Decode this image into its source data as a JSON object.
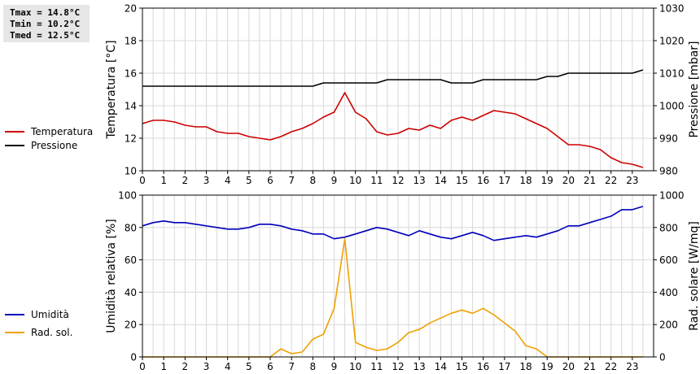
{
  "stats": {
    "tmax": "Tmax = 14.8°C",
    "tmin": "Tmin = 10.2°C",
    "tmed": "Tmed = 12.5°C"
  },
  "legend_top": [
    {
      "label": "Temperatura",
      "color": "#cc0000"
    },
    {
      "label": "Pressione",
      "color": "#000000"
    }
  ],
  "legend_bottom": [
    {
      "label": "Umidità",
      "color": "#0000bb"
    },
    {
      "label": "Rad. sol.",
      "color": "#f0a000"
    }
  ],
  "chart_data": [
    {
      "type": "line",
      "xlabel": "",
      "ylabel": "Temperatura [°C]",
      "y2label": "Pressione [mbar]",
      "xlim": [
        0,
        24
      ],
      "ylim": [
        10,
        20
      ],
      "y2lim": [
        980,
        1030
      ],
      "x_ticks": [
        "0",
        "1",
        "2",
        "3",
        "4",
        "5",
        "6",
        "7",
        "8",
        "9",
        "10",
        "11",
        "12",
        "13",
        "14",
        "15",
        "16",
        "17",
        "18",
        "19",
        "20",
        "21",
        "22",
        "23"
      ],
      "y_ticks": [
        "10",
        "12",
        "14",
        "16",
        "18",
        "20"
      ],
      "y2_ticks": [
        "980",
        "990",
        "1000",
        "1010",
        "1020",
        "1030"
      ],
      "grid": true,
      "series": [
        {
          "name": "Temperatura",
          "axis": "left",
          "color": "#cc0000",
          "x": [
            0,
            0.5,
            1,
            1.5,
            2,
            2.5,
            3,
            3.5,
            4,
            4.5,
            5,
            5.5,
            6,
            6.5,
            7,
            7.5,
            8,
            8.5,
            9,
            9.5,
            10,
            10.5,
            11,
            11.5,
            12,
            12.5,
            13,
            13.5,
            14,
            14.5,
            15,
            15.5,
            16,
            16.5,
            17,
            17.5,
            18,
            18.5,
            19,
            19.5,
            20,
            20.5,
            21,
            21.5,
            22,
            22.5,
            23,
            23.5
          ],
          "y": [
            12.9,
            13.1,
            13.1,
            13.0,
            12.8,
            12.7,
            12.7,
            12.4,
            12.3,
            12.3,
            12.1,
            12.0,
            11.9,
            12.1,
            12.4,
            12.6,
            12.9,
            13.3,
            13.6,
            14.8,
            13.6,
            13.2,
            12.4,
            12.2,
            12.3,
            12.6,
            12.5,
            12.8,
            12.6,
            13.1,
            13.3,
            13.1,
            13.4,
            13.7,
            13.6,
            13.5,
            13.2,
            12.9,
            12.6,
            12.1,
            11.6,
            11.6,
            11.5,
            11.3,
            10.8,
            10.5,
            10.4,
            10.2
          ]
        },
        {
          "name": "Pressione",
          "axis": "right",
          "color": "#000000",
          "x": [
            0,
            0.5,
            1,
            1.5,
            2,
            2.5,
            3,
            3.5,
            4,
            4.5,
            5,
            5.5,
            6,
            6.5,
            7,
            7.5,
            8,
            8.5,
            9,
            9.5,
            10,
            10.5,
            11,
            11.5,
            12,
            12.5,
            13,
            13.5,
            14,
            14.5,
            15,
            15.5,
            16,
            16.5,
            17,
            17.5,
            18,
            18.5,
            19,
            19.5,
            20,
            20.5,
            21,
            21.5,
            22,
            22.5,
            23,
            23.5
          ],
          "y": [
            1006,
            1006,
            1006,
            1006,
            1006,
            1006,
            1006,
            1006,
            1006,
            1006,
            1006,
            1006,
            1006,
            1006,
            1006,
            1006,
            1006,
            1007,
            1007,
            1007,
            1007,
            1007,
            1007,
            1008,
            1008,
            1008,
            1008,
            1008,
            1008,
            1007,
            1007,
            1007,
            1008,
            1008,
            1008,
            1008,
            1008,
            1008,
            1009,
            1009,
            1010,
            1010,
            1010,
            1010,
            1010,
            1010,
            1010,
            1011
          ]
        }
      ]
    },
    {
      "type": "line",
      "xlabel": "",
      "ylabel": "Umidità relativa [%]",
      "y2label": "Rad. solare [W/mq]",
      "xlim": [
        0,
        24
      ],
      "ylim": [
        0,
        100
      ],
      "y2lim": [
        0,
        1000
      ],
      "x_ticks": [
        "0",
        "1",
        "2",
        "3",
        "4",
        "5",
        "6",
        "7",
        "8",
        "9",
        "10",
        "11",
        "12",
        "13",
        "14",
        "15",
        "16",
        "17",
        "18",
        "19",
        "20",
        "21",
        "22",
        "23"
      ],
      "y_ticks": [
        "0",
        "20",
        "40",
        "60",
        "80",
        "100"
      ],
      "y2_ticks": [
        "0",
        "200",
        "400",
        "600",
        "800",
        "1000"
      ],
      "grid": true,
      "series": [
        {
          "name": "Umidità",
          "axis": "left",
          "color": "#0000bb",
          "x": [
            0,
            0.5,
            1,
            1.5,
            2,
            2.5,
            3,
            3.5,
            4,
            4.5,
            5,
            5.5,
            6,
            6.5,
            7,
            7.5,
            8,
            8.5,
            9,
            9.5,
            10,
            10.5,
            11,
            11.5,
            12,
            12.5,
            13,
            13.5,
            14,
            14.5,
            15,
            15.5,
            16,
            16.5,
            17,
            17.5,
            18,
            18.5,
            19,
            19.5,
            20,
            20.5,
            21,
            21.5,
            22,
            22.5,
            23,
            23.5
          ],
          "y": [
            81,
            83,
            84,
            83,
            83,
            82,
            81,
            80,
            79,
            79,
            80,
            82,
            82,
            81,
            79,
            78,
            76,
            76,
            73,
            74,
            76,
            78,
            80,
            79,
            77,
            75,
            78,
            76,
            74,
            73,
            75,
            77,
            75,
            72,
            73,
            74,
            75,
            74,
            76,
            78,
            81,
            81,
            83,
            85,
            87,
            91,
            91,
            93
          ]
        },
        {
          "name": "Rad. sol.",
          "axis": "right",
          "color": "#f0a000",
          "x": [
            0,
            0.5,
            1,
            1.5,
            2,
            2.5,
            3,
            3.5,
            4,
            4.5,
            5,
            5.5,
            6,
            6.5,
            7,
            7.5,
            8,
            8.5,
            9,
            9.5,
            10,
            10.5,
            11,
            11.5,
            12,
            12.5,
            13,
            13.5,
            14,
            14.5,
            15,
            15.5,
            16,
            16.5,
            17,
            17.5,
            18,
            18.5,
            19,
            19.5,
            20,
            20.5,
            21,
            21.5,
            22,
            22.5,
            23,
            23.5
          ],
          "y": [
            0,
            0,
            0,
            0,
            0,
            0,
            0,
            0,
            0,
            0,
            0,
            0,
            0,
            50,
            20,
            30,
            110,
            140,
            300,
            730,
            90,
            60,
            40,
            50,
            90,
            150,
            170,
            210,
            240,
            270,
            290,
            270,
            300,
            260,
            210,
            160,
            70,
            50,
            0,
            0,
            0,
            0,
            0,
            0,
            0,
            0,
            0,
            0
          ]
        }
      ]
    }
  ]
}
